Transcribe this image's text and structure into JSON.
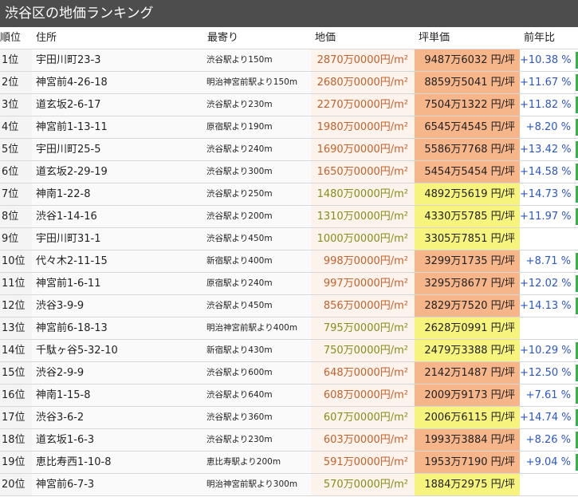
{
  "header": {
    "title": "渋谷区の地価ランキング"
  },
  "table": {
    "columns": [
      "順位",
      "住所",
      "最寄り",
      "地価",
      "坪単価",
      "前年比"
    ],
    "rows": [
      [
        "1位",
        "宇田川町23-3",
        "渋谷駅より150m",
        "2870万0000円/m²",
        "9487万6032 円/坪",
        "+10.38 %"
      ],
      [
        "2位",
        "神宮前4-26-18",
        "明治神宮前駅より150m",
        "2680万0000円/m²",
        "8859万5041 円/坪",
        "+11.67 %"
      ],
      [
        "3位",
        "道玄坂2-6-17",
        "渋谷駅より230m",
        "2270万0000円/m²",
        "7504万1322 円/坪",
        "+11.82 %"
      ],
      [
        "4位",
        "神宮前1-13-11",
        "原宿駅より190m",
        "1980万0000円/m²",
        "6545万4545 円/坪",
        "+8.20 %"
      ],
      [
        "5位",
        "宇田川町25-5",
        "渋谷駅より240m",
        "1690万0000円/m²",
        "5586万7768 円/坪",
        "+13.42 %"
      ],
      [
        "6位",
        "道玄坂2-29-19",
        "渋谷駅より300m",
        "1650万0000円/m²",
        "5454万5454 円/坪",
        "+14.58 %"
      ],
      [
        "7位",
        "神南1-22-8",
        "渋谷駅より250m",
        "1480万0000円/m²",
        "4892万5619 円/坪",
        "+14.73 %"
      ],
      [
        "8位",
        "渋谷1-14-16",
        "渋谷駅より200m",
        "1310万0000円/m²",
        "4330万5785 円/坪",
        "+11.97 %"
      ],
      [
        "9位",
        "宇田川町31-1",
        "渋谷駅より450m",
        "1000万0000円/m²",
        "3305万7851 円/坪",
        null
      ],
      [
        "10位",
        "代々木2-11-15",
        "新宿駅より400m",
        "998万0000円/m²",
        "3299万1735 円/坪",
        "+8.71 %"
      ],
      [
        "11位",
        "神宮前1-6-11",
        "原宿駅より240m",
        "997万0000円/m²",
        "3295万8677 円/坪",
        "+12.02 %"
      ],
      [
        "12位",
        "渋谷3-9-9",
        "渋谷駅より450m",
        "856万0000円/m²",
        "2829万7520 円/坪",
        "+14.13 %"
      ],
      [
        "13位",
        "神宮前6-18-13",
        "明治神宮前駅より400m",
        "795万0000円/m²",
        "2628万0991 円/坪",
        null
      ],
      [
        "14位",
        "千駄ヶ谷5-32-10",
        "新宿駅より430m",
        "750万0000円/m²",
        "2479万3388 円/坪",
        "+10.29 %"
      ],
      [
        "15位",
        "渋谷2-9-9",
        "渋谷駅より600m",
        "648万0000円/m²",
        "2142万1487 円/坪",
        "+12.50 %"
      ],
      [
        "16位",
        "神南1-15-8",
        "渋谷駅より640m",
        "608万0000円/m²",
        "2009万9173 円/坪",
        "+7.61 %"
      ],
      [
        "17位",
        "渋谷3-6-2",
        "渋谷駅より360m",
        "607万0000円/m²",
        "2006万6115 円/坪",
        "+14.74 %"
      ],
      [
        "18位",
        "道玄坂1-6-3",
        "渋谷駅より230m",
        "603万0000円/m²",
        "1993万3884 円/坪",
        "+8.26 %"
      ],
      [
        "19位",
        "恵比寿西1-10-8",
        "恵比寿駅より200m",
        "591万0000円/m²",
        "1953万7190 円/坪",
        "+9.04 %"
      ],
      [
        "20位",
        "神宮前6-7-3",
        "明治神宮前駅より300m",
        "570万0000円/m²",
        "1884万2975 円/坪",
        null
      ]
    ],
    "row_colors": [
      "#f7b58a",
      "#f7b58a",
      "#f7b58a",
      "#f7b58a",
      "#f7b58a",
      "#f7b58a",
      "#f6f47c",
      "#f6f47c",
      "#f6f47c",
      "#f7b58a",
      "#f7b58a",
      "#f7b58a",
      "#f6f47c",
      "#f6f47c",
      "#f7b58a",
      "#f7b58a",
      "#f6f47c",
      "#f7b58a",
      "#f7b58a",
      "#f6f47c"
    ],
    "price_colors": [
      "#c5602a",
      "#c5602a",
      "#c5602a",
      "#c5602a",
      "#c5602a",
      "#c5602a",
      "#8a8c18",
      "#8a8c18",
      "#8a8c18",
      "#c5602a",
      "#c5602a",
      "#c5602a",
      "#8a8c18",
      "#8a8c18",
      "#c5602a",
      "#c5602a",
      "#8a8c18",
      "#c5602a",
      "#c5602a",
      "#8a8c18"
    ]
  }
}
